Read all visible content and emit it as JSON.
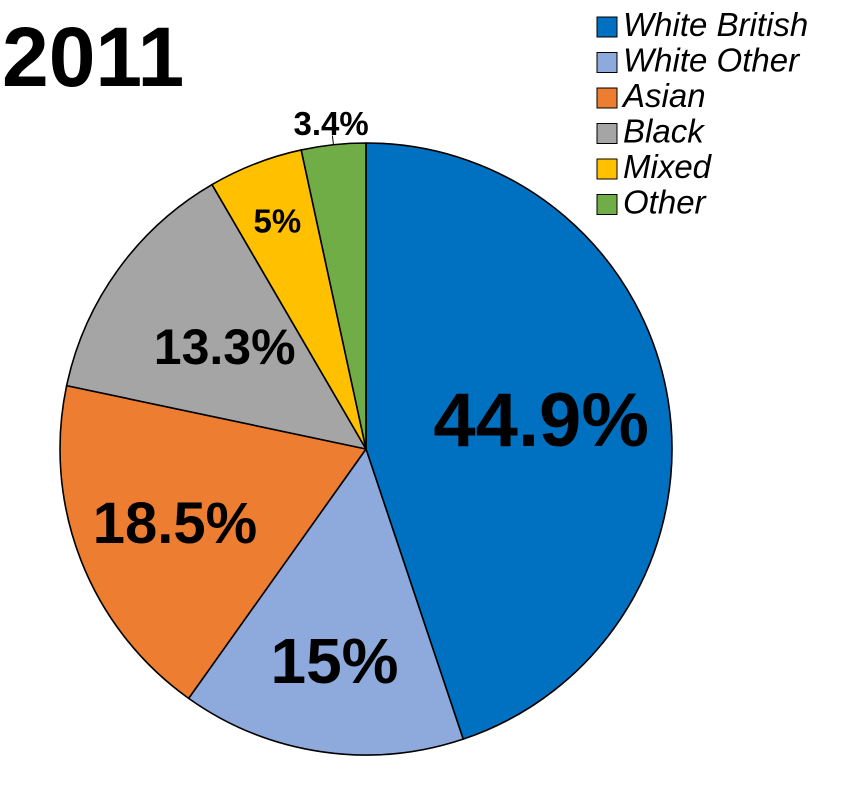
{
  "chart_data": {
    "type": "pie",
    "title": "2011",
    "legend_position": "top-right",
    "categories": [
      "White British",
      "White Other",
      "Asian",
      "Black",
      "Mixed",
      "Other"
    ],
    "values": [
      44.9,
      15,
      18.5,
      13.3,
      5,
      3.4
    ],
    "labels": [
      "44.9%",
      "15%",
      "18.5%",
      "13.3%",
      "5%",
      "3.4%"
    ],
    "colors": [
      "#0070C0",
      "#8EA9DB",
      "#ED7D31",
      "#A5A5A5",
      "#FFC000",
      "#70AD47"
    ]
  }
}
